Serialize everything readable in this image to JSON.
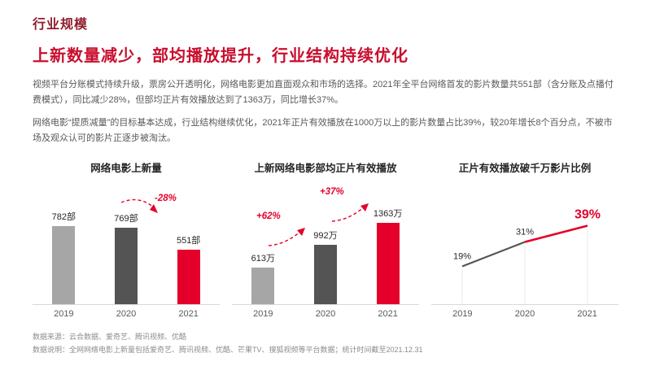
{
  "page": {
    "title": "行业规模",
    "headline": "上新数量减少，部均播放提升，行业结构持续优化",
    "paragraphs": [
      "视频平台分账模式持续升级，票房公开透明化，网络电影更加直面观众和市场的选择。2021年全平台网络首发的影片数量共551部（含分账及点播付费模式），同比减少28%，但部均正片有效播放达到了1363万，同比增长37%。",
      "网络电影“提质减量”的目标基本达成，行业结构继续优化，2021年正片有效播放在1000万以上的影片数量占比39%，较20年增长8个百分点，不被市场及观众认可的影片正逐步被淘汰。"
    ],
    "footer": [
      "数据来源：云合数据、爱奇艺、腾讯视频、优酷",
      "数据说明：全网网络电影上新量包括爱奇艺、腾讯视频、优酷、芒果TV、搜狐视频等平台数据；统计时间截至2021.12.31"
    ]
  },
  "colors": {
    "title": "#8F1D2D",
    "headline": "#C90E2E",
    "accent_red": "#E4002B",
    "bar_gray_light": "#A6A6A6",
    "bar_gray_dark": "#545454",
    "axis": "#d9d9d9"
  },
  "chart_data": [
    {
      "type": "bar",
      "title": "网络电影上新量",
      "categories": [
        "2019",
        "2020",
        "2021"
      ],
      "values": [
        782,
        769,
        551
      ],
      "value_labels": [
        "782部",
        "769部",
        "551部"
      ],
      "bar_colors": [
        "#A6A6A6",
        "#545454",
        "#E4002B"
      ],
      "annotations": [
        {
          "text": "-28%",
          "refers_to": "2021 vs 2020"
        }
      ],
      "ylim": [
        0,
        900
      ],
      "grid": false,
      "legend": "none"
    },
    {
      "type": "bar",
      "title": "上新网络电影部均正片有效播放",
      "categories": [
        "2019",
        "2020",
        "2021"
      ],
      "values": [
        613,
        992,
        1363
      ],
      "value_labels": [
        "613万",
        "992万",
        "1363万"
      ],
      "bar_colors": [
        "#A6A6A6",
        "#545454",
        "#E4002B"
      ],
      "annotations": [
        {
          "text": "+62%",
          "refers_to": "2020 vs 2019"
        },
        {
          "text": "+37%",
          "refers_to": "2021 vs 2020"
        }
      ],
      "ylim": [
        0,
        1500
      ],
      "grid": false,
      "legend": "none"
    },
    {
      "type": "line",
      "title": "正片有效播放破千万影片比例",
      "categories": [
        "2019",
        "2020",
        "2021"
      ],
      "values": [
        19,
        31,
        39
      ],
      "value_labels": [
        "19%",
        "31%",
        "39%"
      ],
      "segment_colors": [
        "#545454",
        "#E4002B"
      ],
      "highlight_index": 2,
      "ylim": [
        0,
        60
      ],
      "grid": true,
      "legend": "none"
    }
  ]
}
